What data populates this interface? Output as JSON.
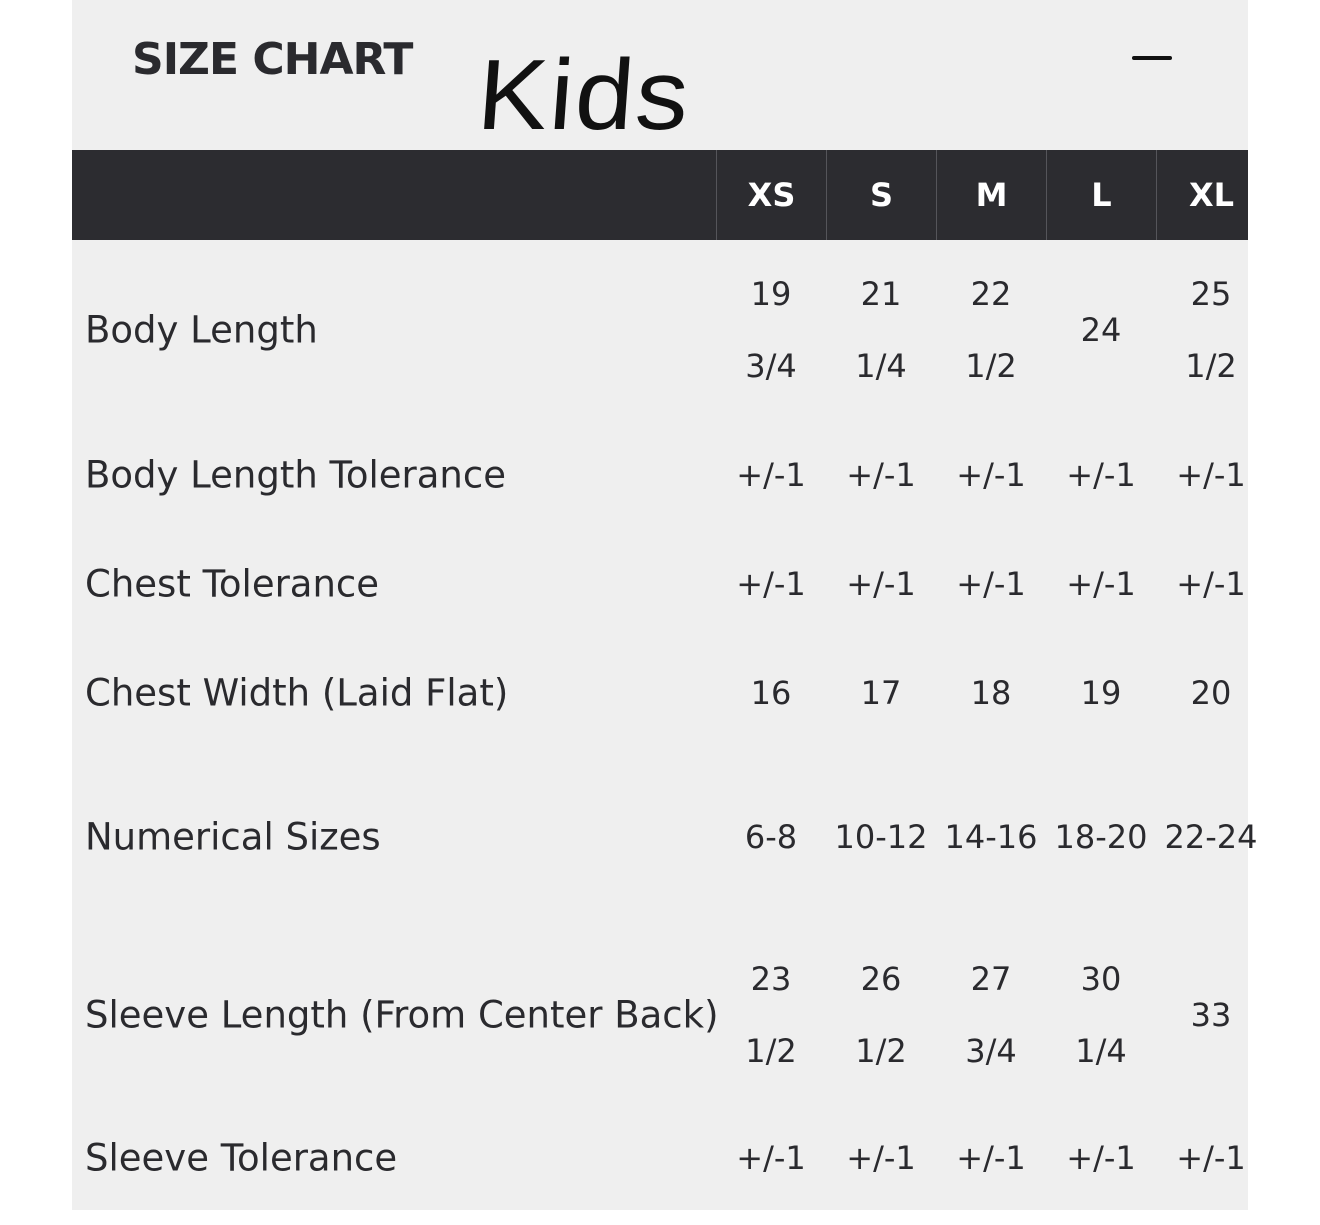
{
  "title": "SIZE CHART",
  "annotation": "Kids",
  "collapse_icon": "minus-icon",
  "columns": [
    "XS",
    "S",
    "M",
    "L",
    "XL"
  ],
  "rows": [
    {
      "label": "Body Length",
      "values": [
        "19 3/4",
        "21 1/4",
        "22 1/2",
        "24",
        "25 1/2"
      ]
    },
    {
      "label": "Body Length Tolerance",
      "values": [
        "+/-1",
        "+/-1",
        "+/-1",
        "+/-1",
        "+/-1"
      ]
    },
    {
      "label": "Chest Tolerance",
      "values": [
        "+/-1",
        "+/-1",
        "+/-1",
        "+/-1",
        "+/-1"
      ]
    },
    {
      "label": "Chest Width (Laid Flat)",
      "values": [
        "16",
        "17",
        "18",
        "19",
        "20"
      ]
    },
    {
      "label": "Numerical Sizes",
      "values": [
        "6-8",
        "10-12",
        "14-16",
        "18-20",
        "22-24"
      ]
    },
    {
      "label": "Sleeve Length (From Center Back)",
      "values": [
        "23 1/2",
        "26 1/2",
        "27 3/4",
        "30 1/4",
        "33"
      ]
    },
    {
      "label": "Sleeve Tolerance",
      "values": [
        "+/-1",
        "+/-1",
        "+/-1",
        "+/-1",
        "+/-1"
      ]
    }
  ]
}
